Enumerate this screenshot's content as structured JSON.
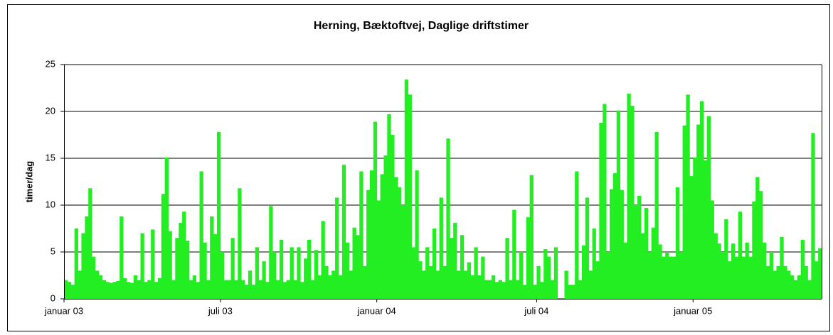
{
  "chart_data": {
    "type": "bar",
    "title": "Herning, Bæktoftvej, Daglige driftstimer",
    "y_label": "timer/dag",
    "color": "#22ee22",
    "grid": true,
    "ylim": [
      0,
      25
    ],
    "yticks": [
      0,
      5,
      10,
      15,
      20,
      25
    ],
    "categories": [
      "januar 03",
      null,
      null,
      null,
      null,
      null,
      null,
      null,
      null,
      null,
      null,
      null,
      null,
      null,
      null,
      null,
      null,
      null,
      null,
      null,
      null,
      null,
      null,
      null,
      null,
      null,
      null,
      null,
      null,
      null,
      null,
      null,
      null,
      null,
      null,
      null,
      null,
      null,
      null,
      null,
      null,
      null,
      null,
      null,
      null,
      "juli 03",
      null,
      null,
      null,
      null,
      null,
      null,
      null,
      null,
      null,
      null,
      null,
      null,
      null,
      null,
      null,
      null,
      null,
      null,
      null,
      null,
      null,
      null,
      null,
      null,
      null,
      null,
      null,
      null,
      null,
      null,
      null,
      null,
      null,
      null,
      null,
      null,
      null,
      null,
      null,
      null,
      null,
      null,
      null,
      null,
      "januar 04",
      null,
      null,
      null,
      null,
      null,
      null,
      null,
      null,
      null,
      null,
      null,
      null,
      null,
      null,
      null,
      null,
      null,
      null,
      null,
      null,
      null,
      null,
      null,
      null,
      null,
      null,
      null,
      null,
      null,
      null,
      null,
      null,
      null,
      null,
      null,
      null,
      null,
      null,
      null,
      null,
      null,
      null,
      null,
      null,
      null,
      "juli 04",
      null,
      null,
      null,
      null,
      null,
      null,
      null,
      null,
      null,
      null,
      null,
      null,
      null,
      null,
      null,
      null,
      null,
      null,
      null,
      null,
      null,
      null,
      null,
      null,
      null,
      null,
      null,
      null,
      null,
      null,
      null,
      null,
      null,
      null,
      null,
      null,
      null,
      null,
      null,
      null,
      null,
      null,
      null,
      null,
      "januar 05",
      null,
      null,
      null,
      null,
      null,
      null,
      null,
      null,
      null,
      null,
      null,
      null,
      null,
      null,
      null,
      null,
      null,
      null,
      null,
      null,
      null,
      null,
      null,
      null,
      null,
      null,
      null,
      null,
      null,
      null,
      null,
      null,
      null,
      null,
      null,
      null
    ],
    "values": [
      2,
      1.8,
      1.5,
      7.5,
      3,
      7,
      8.8,
      11.8,
      4.5,
      3,
      2.5,
      2,
      1.8,
      1.7,
      1.8,
      1.9,
      8.8,
      2.2,
      1.8,
      1.7,
      2.5,
      2,
      7,
      1.8,
      2,
      7.4,
      1.8,
      2.2,
      11.2,
      15.1,
      7.2,
      2,
      6.5,
      8.1,
      9.3,
      6.2,
      2,
      2.5,
      1.8,
      13.6,
      6,
      2,
      8.8,
      6.9,
      17.8,
      5,
      2,
      2,
      6.5,
      2,
      11.8,
      2,
      1.5,
      3,
      1.5,
      5.5,
      2,
      4,
      1.8,
      9.9,
      5,
      2,
      6.3,
      1.8,
      2,
      5.5,
      2,
      5.5,
      1.8,
      4.3,
      6.3,
      2,
      5.2,
      2.5,
      8.3,
      3.5,
      2.5,
      3,
      10.8,
      2.5,
      14.3,
      6,
      3,
      7.6,
      6.8,
      13.6,
      3.5,
      11.6,
      13.7,
      18.9,
      10.5,
      13.3,
      15.3,
      19.7,
      17.5,
      13,
      11.9,
      10,
      23.4,
      21.8,
      5.5,
      13.7,
      4,
      3,
      5.5,
      3.5,
      7.5,
      3,
      10.8,
      3.5,
      17.1,
      6.5,
      8.1,
      3,
      6.8,
      3,
      3.9,
      2.5,
      5.5,
      2.5,
      4.5,
      2,
      2,
      2.5,
      1.8,
      2,
      1.8,
      6.5,
      2,
      9.5,
      2,
      5,
      1.5,
      8.7,
      13.2,
      1.5,
      3.5,
      1.8,
      5.3,
      4.5,
      2,
      5.5,
      0,
      0,
      3,
      1.5,
      1.5,
      13.6,
      2,
      5.7,
      10.8,
      3,
      7.5,
      4,
      18.8,
      20.8,
      5,
      11.7,
      13.4,
      20.1,
      11.6,
      6,
      21.9,
      20.6,
      10,
      11,
      7,
      9.7,
      5,
      7.6,
      17.8,
      5.8,
      4.5,
      5,
      4.5,
      4.5,
      11.9,
      5,
      18.5,
      21.8,
      13.1,
      15.1,
      18.6,
      21.1,
      14.8,
      19.5,
      10.5,
      7,
      5.9,
      5,
      8.5,
      4,
      5.9,
      4.5,
      9.3,
      4.5,
      6,
      4.5,
      10.4,
      13,
      11.5,
      6,
      3.5,
      5,
      3,
      3.5,
      6.6,
      3.5,
      3,
      2.5,
      2,
      2.5,
      6.3,
      3.5,
      2,
      17.7,
      4,
      5.4
    ]
  }
}
